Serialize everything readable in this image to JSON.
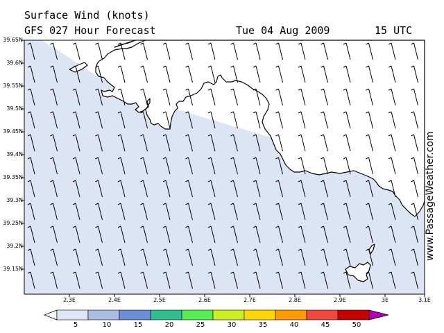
{
  "header": {
    "line1": "Surface Wind (knots)",
    "forecast": "GFS 027 Hour Forecast",
    "date": "Tue 04 Aug 2009",
    "time": "15 UTC"
  },
  "credit": "www.PassageWeather.com",
  "axes": {
    "lat_labels": [
      "39.65N",
      "39.6N",
      "39.55N",
      "39.5N",
      "39.45N",
      "39.4N",
      "39.35N",
      "39.3N",
      "39.25N",
      "39.2N",
      "39.15N"
    ],
    "lon_labels": [
      "2.3E",
      "2.4E",
      "2.5E",
      "2.6E",
      "2.7E",
      "2.8E",
      "2.9E",
      "3E",
      "3.1E"
    ]
  },
  "scale": {
    "labels": [
      "5",
      "10",
      "15",
      "20",
      "25",
      "30",
      "35",
      "40",
      "45",
      "50"
    ],
    "colors": [
      "#ffffff",
      "#dfe6f5",
      "#a9bde3",
      "#6b8fd6",
      "#2fbf8f",
      "#55ee55",
      "#ccee22",
      "#ffd700",
      "#ff9a00",
      "#f0483c",
      "#c80000",
      "#b000b0"
    ]
  },
  "colors": {
    "sea_tint": "#dde4f3",
    "land": "#ffffff",
    "coast": "#000000"
  },
  "wind_field": {
    "direction": "from north-northwest",
    "speed_knots": "5-10"
  }
}
